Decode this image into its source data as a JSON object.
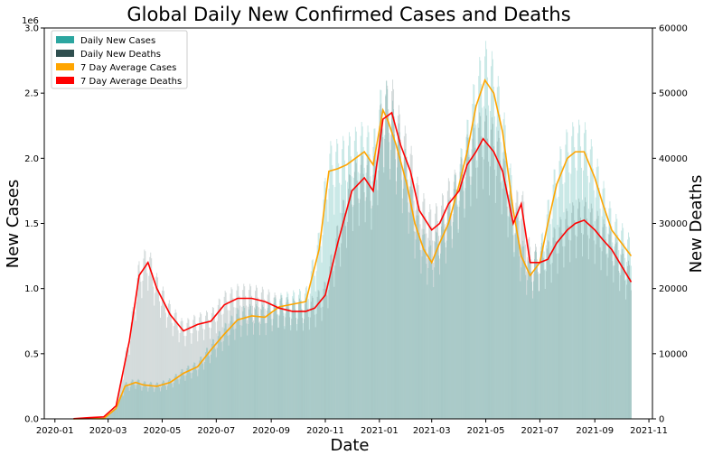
{
  "chart_data": {
    "type": "bar",
    "title": "Global Daily New Confirmed Cases and Deaths",
    "xlabel": "Date",
    "ylabel": "New Cases",
    "y2label": "New Deaths",
    "y_offset_label": "1e6",
    "xlim": [
      "2019-12-20",
      "2021-11-05"
    ],
    "ylim": [
      0,
      3000000
    ],
    "y2lim": [
      0,
      60000
    ],
    "x_ticks": [
      "2020-01",
      "2020-03",
      "2020-05",
      "2020-07",
      "2020-09",
      "2020-11",
      "2021-01",
      "2021-03",
      "2021-05",
      "2021-07",
      "2021-09",
      "2021-11"
    ],
    "y_ticks": [
      "0.0",
      "0.5",
      "1.0",
      "1.5",
      "2.0",
      "2.5",
      "3.0"
    ],
    "y2_ticks": [
      "0",
      "10000",
      "20000",
      "30000",
      "40000",
      "50000",
      "60000"
    ],
    "grid": false,
    "legend_position": "top-left",
    "legend": [
      "Daily New Cases",
      "Daily New Deaths",
      "7 Day Average Cases",
      "7 Day Average Deaths"
    ],
    "colors": {
      "daily_cases": "#2ca6a0",
      "daily_deaths": "#2f4f4f",
      "avg_cases": "#ffa500",
      "avg_deaths": "#ff0000",
      "daily_cases_fill": "#bfe6e4",
      "daily_deaths_fill": "#d3d8d8",
      "overlap_fill": "#b3d1d1"
    },
    "series": [
      {
        "name": "7 Day Average Cases",
        "axis": "left",
        "x": [
          "2020-01-22",
          "2020-02-10",
          "2020-02-25",
          "2020-03-10",
          "2020-03-20",
          "2020-04-01",
          "2020-04-10",
          "2020-04-25",
          "2020-05-10",
          "2020-05-25",
          "2020-06-10",
          "2020-06-25",
          "2020-07-10",
          "2020-07-25",
          "2020-08-10",
          "2020-08-25",
          "2020-09-10",
          "2020-09-25",
          "2020-10-10",
          "2020-10-25",
          "2020-11-05",
          "2020-11-15",
          "2020-11-25",
          "2020-12-05",
          "2020-12-15",
          "2020-12-25",
          "2021-01-05",
          "2021-01-10",
          "2021-01-20",
          "2021-02-01",
          "2021-02-10",
          "2021-02-20",
          "2021-03-01",
          "2021-03-10",
          "2021-03-20",
          "2021-04-01",
          "2021-04-10",
          "2021-04-20",
          "2021-04-30",
          "2021-05-10",
          "2021-05-20",
          "2021-06-01",
          "2021-06-10",
          "2021-06-20",
          "2021-07-01",
          "2021-07-10",
          "2021-07-20",
          "2021-08-01",
          "2021-08-10",
          "2021-08-20",
          "2021-09-01",
          "2021-09-10",
          "2021-09-20",
          "2021-10-01",
          "2021-10-12"
        ],
        "values": [
          500,
          2000,
          1500,
          80000,
          250000,
          280000,
          260000,
          250000,
          280000,
          350000,
          400000,
          530000,
          650000,
          760000,
          790000,
          780000,
          860000,
          880000,
          900000,
          1300000,
          1900000,
          1920000,
          1950000,
          2000000,
          2050000,
          1950000,
          2370000,
          2300000,
          2100000,
          1800000,
          1500000,
          1300000,
          1200000,
          1350000,
          1500000,
          1800000,
          2050000,
          2400000,
          2600000,
          2500000,
          2200000,
          1600000,
          1250000,
          1100000,
          1200000,
          1500000,
          1800000,
          2000000,
          2050000,
          2050000,
          1850000,
          1650000,
          1450000,
          1350000,
          1250000
        ]
      },
      {
        "name": "7 Day Average Deaths",
        "axis": "right",
        "x": [
          "2020-01-22",
          "2020-02-10",
          "2020-02-25",
          "2020-03-10",
          "2020-03-25",
          "2020-04-05",
          "2020-04-15",
          "2020-04-25",
          "2020-05-10",
          "2020-05-25",
          "2020-06-10",
          "2020-06-25",
          "2020-07-10",
          "2020-07-25",
          "2020-08-10",
          "2020-08-25",
          "2020-09-10",
          "2020-09-25",
          "2020-10-10",
          "2020-10-20",
          "2020-11-01",
          "2020-11-15",
          "2020-12-01",
          "2020-12-15",
          "2020-12-25",
          "2021-01-05",
          "2021-01-15",
          "2021-01-25",
          "2021-02-05",
          "2021-02-15",
          "2021-03-01",
          "2021-03-10",
          "2021-03-20",
          "2021-04-01",
          "2021-04-10",
          "2021-04-20",
          "2021-04-28",
          "2021-05-10",
          "2021-05-20",
          "2021-06-01",
          "2021-06-10",
          "2021-06-20",
          "2021-07-01",
          "2021-07-10",
          "2021-07-20",
          "2021-08-01",
          "2021-08-10",
          "2021-08-20",
          "2021-09-01",
          "2021-09-10",
          "2021-09-20",
          "2021-10-01",
          "2021-10-12"
        ],
        "values": [
          20,
          200,
          300,
          2000,
          12000,
          22000,
          24000,
          20000,
          16000,
          13500,
          14500,
          15000,
          17500,
          18500,
          18500,
          18000,
          17000,
          16500,
          16500,
          17000,
          19000,
          27000,
          35000,
          37000,
          35000,
          46000,
          47000,
          42000,
          38000,
          32000,
          29000,
          30000,
          33000,
          35000,
          39000,
          41000,
          43000,
          41000,
          38000,
          30000,
          33000,
          24000,
          24000,
          24500,
          27000,
          29000,
          30000,
          30500,
          29000,
          27500,
          26000,
          23500,
          21000
        ]
      }
    ]
  }
}
